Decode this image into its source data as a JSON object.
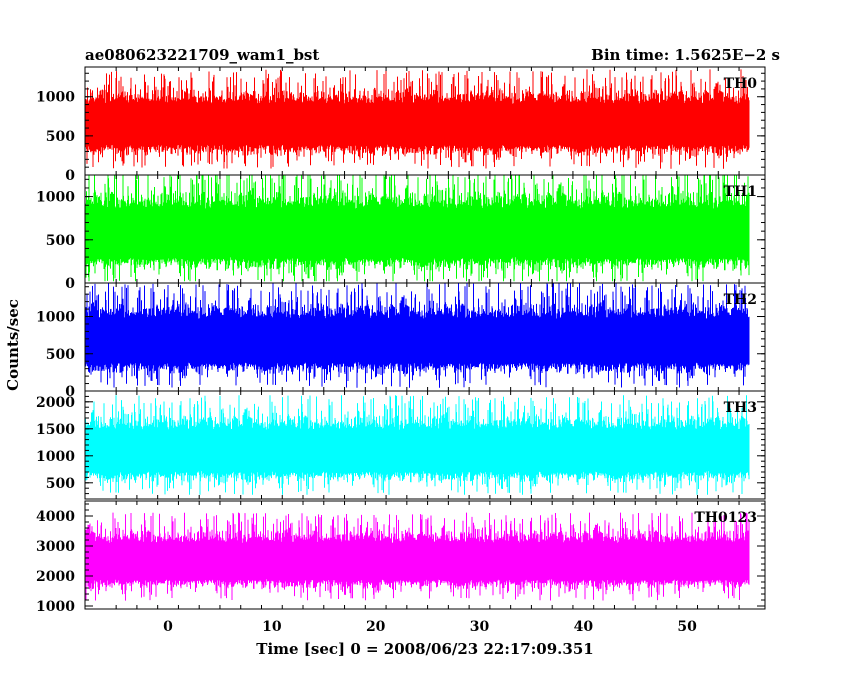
{
  "header": {
    "left_title": "ae080623221709_wam1_bst",
    "right_title": "Bin time: 1.5625E−2 s"
  },
  "chart_data": {
    "type": "line",
    "xlabel": "Time [sec] 0 = 2008/06/23 22:17:09.351",
    "ylabel": "Counts/sec",
    "xlim": [
      -8,
      57.5
    ],
    "x_data_range": [
      -8,
      56
    ],
    "xticks": [
      "0",
      "10",
      "20",
      "30",
      "40",
      "50"
    ],
    "xtick_values": [
      0,
      10,
      20,
      30,
      40,
      50
    ],
    "bin_time_s": 0.015625,
    "panels": [
      {
        "name": "TH0",
        "color": "#ff0000",
        "ylim": [
          0,
          1380
        ],
        "yticks": [
          0,
          500,
          1000
        ],
        "ytick_labels": [
          "0",
          "500",
          "1000"
        ],
        "mean": 650,
        "spread": 260,
        "min_value": 40,
        "max_value": 1380
      },
      {
        "name": "TH1",
        "color": "#00ff00",
        "ylim": [
          0,
          1250
        ],
        "yticks": [
          0,
          500,
          1000
        ],
        "ytick_labels": [
          "0",
          "500",
          "1000"
        ],
        "mean": 580,
        "spread": 280,
        "min_value": 20,
        "max_value": 1250
      },
      {
        "name": "TH2",
        "color": "#0000ff",
        "ylim": [
          0,
          1450
        ],
        "yticks": [
          0,
          500,
          1000
        ],
        "ytick_labels": [
          "0",
          "500",
          "1000"
        ],
        "mean": 680,
        "spread": 290,
        "min_value": 20,
        "max_value": 1450
      },
      {
        "name": "TH3",
        "color": "#00ffff",
        "ylim": [
          200,
          2200
        ],
        "yticks": [
          500,
          1000,
          1500,
          2000
        ],
        "ytick_labels": [
          "500",
          "1000",
          "1500",
          "2000"
        ],
        "mean": 1100,
        "spread": 380,
        "min_value": 280,
        "max_value": 2200
      },
      {
        "name": "TH0123",
        "color": "#ff00ff",
        "ylim": [
          900,
          4500
        ],
        "yticks": [
          1000,
          2000,
          3000,
          4000
        ],
        "ytick_labels": [
          "1000",
          "2000",
          "3000",
          "4000"
        ],
        "mean": 2500,
        "spread": 600,
        "min_value": 1050,
        "max_value": 4450
      }
    ]
  }
}
